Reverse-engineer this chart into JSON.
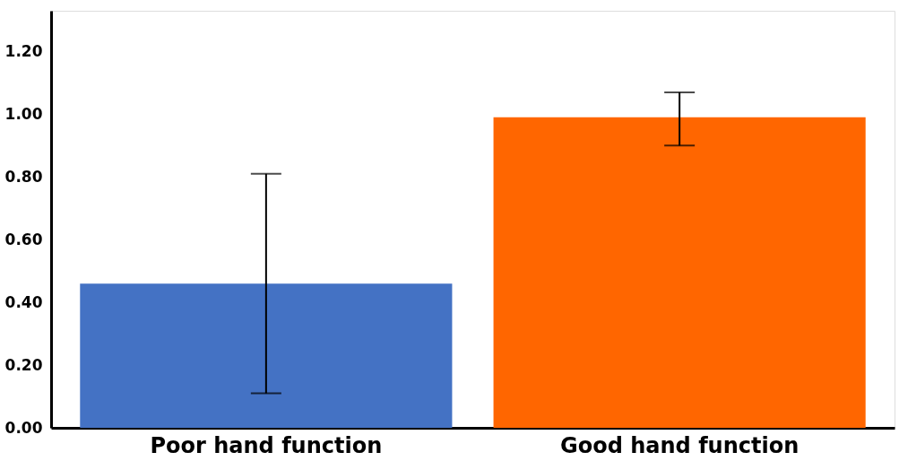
{
  "chart_data": {
    "type": "bar",
    "categories": [
      "Poor hand function",
      "Good hand function"
    ],
    "values": [
      0.46,
      0.99
    ],
    "colors": [
      "#4472c4",
      "#ff6600"
    ],
    "errors": [
      [
        0.11,
        0.81
      ],
      [
        0.9,
        1.07
      ]
    ],
    "ylim": [
      0,
      1.33
    ],
    "yticks": [
      {
        "value": 0,
        "label": "0.00"
      },
      {
        "value": 0.2,
        "label": "0.20"
      },
      {
        "value": 0.4,
        "label": "0.40"
      },
      {
        "value": 0.6,
        "label": "0.60"
      },
      {
        "value": 0.8,
        "label": "0.80"
      },
      {
        "value": 1.0,
        "label": "1.00"
      },
      {
        "value": 1.2,
        "label": "1.20"
      }
    ],
    "grid": false
  }
}
